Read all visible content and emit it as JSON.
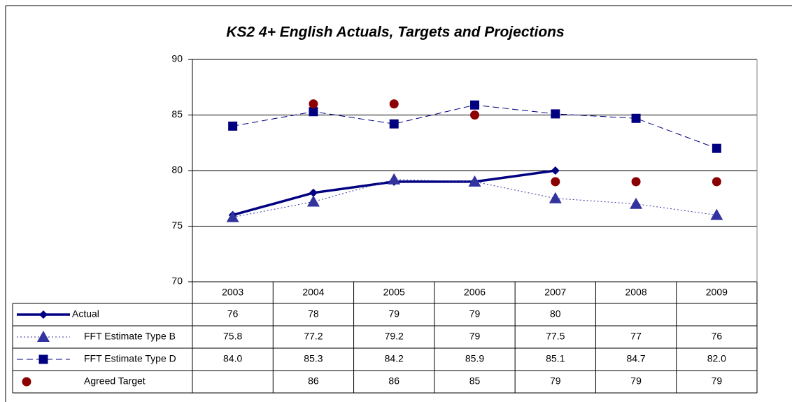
{
  "chart_data": {
    "type": "line",
    "title": "KS2 4+ English Actuals, Targets and Projections",
    "categories": [
      "2003",
      "2004",
      "2005",
      "2006",
      "2007",
      "2008",
      "2009"
    ],
    "ylim": [
      70,
      90
    ],
    "yticks": [
      70,
      75,
      80,
      85,
      90
    ],
    "grid": true,
    "series": [
      {
        "name": "Actual",
        "color": "#000080",
        "marker": "diamond",
        "line": "solid",
        "line_width": 3.5,
        "values": [
          76,
          78,
          79,
          79,
          80,
          null,
          null
        ]
      },
      {
        "name": "FFT Estimate Type B",
        "color": "#3333a0",
        "marker": "triangle",
        "line": "dotted",
        "line_width": 1,
        "values": [
          75.8,
          77.2,
          79.2,
          79,
          77.5,
          77,
          76
        ]
      },
      {
        "name": "FFT Estimate Type D",
        "color": "#000080",
        "marker": "square",
        "line": "dashed",
        "line_width": 1,
        "values": [
          84.0,
          85.3,
          84.2,
          85.9,
          85.1,
          84.7,
          82.0
        ],
        "value_labels": [
          "84.0",
          "85.3",
          "84.2",
          "85.9",
          "85.1",
          "84.7",
          "82.0"
        ]
      },
      {
        "name": "Agreed Target",
        "color": "#8b0000",
        "marker": "circle",
        "line": "none",
        "line_width": 0,
        "values": [
          null,
          86,
          86,
          85,
          79,
          79,
          79
        ]
      }
    ]
  }
}
